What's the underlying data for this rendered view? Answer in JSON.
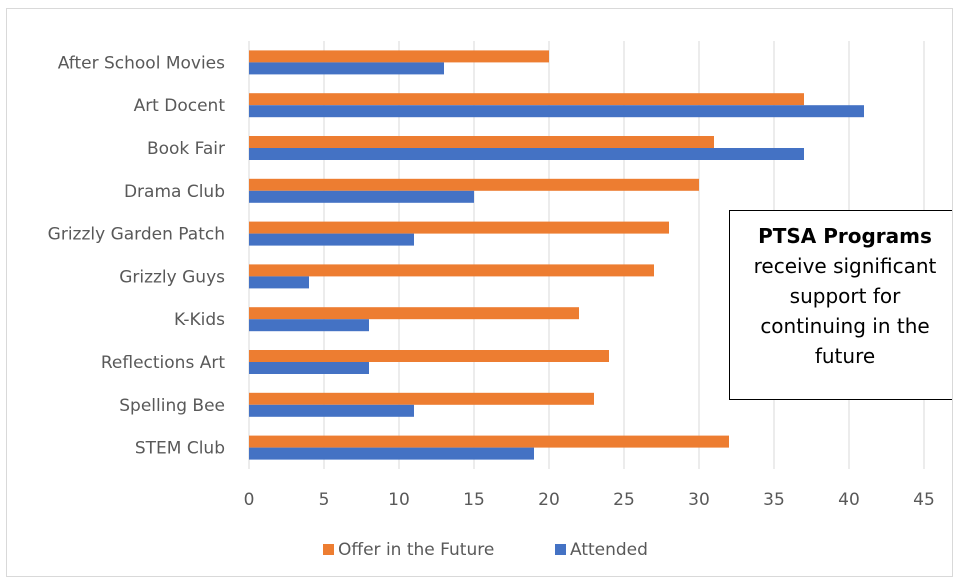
{
  "chart_data": {
    "type": "bar",
    "orientation": "horizontal",
    "categories": [
      "After School Movies",
      "Art Docent",
      "Book Fair",
      "Drama Club",
      "Grizzly Garden Patch",
      "Grizzly Guys",
      "K-Kids",
      "Reflections Art",
      "Spelling Bee",
      "STEM Club"
    ],
    "series": [
      {
        "name": "Offer in the Future",
        "color": "#ED7D31",
        "values": [
          20,
          37,
          31,
          30,
          28,
          27,
          22,
          24,
          23,
          32
        ]
      },
      {
        "name": "Attended",
        "color": "#4472C4",
        "values": [
          13,
          41,
          37,
          15,
          11,
          4,
          8,
          8,
          11,
          19
        ]
      }
    ],
    "xlim": [
      0,
      45
    ],
    "x_ticks": [
      "0",
      "5",
      "10",
      "15",
      "20",
      "25",
      "30",
      "35",
      "40",
      "45"
    ],
    "grid": true,
    "legend_position": "bottom",
    "title": "",
    "xlabel": "",
    "ylabel": ""
  },
  "annotation": {
    "bold_text": "PTSA Programs",
    "body_lines": [
      "receive significant",
      "support for",
      "continuing in the",
      "future"
    ]
  },
  "colors": {
    "gridline": "#d9d9d9",
    "axis_text": "#595959"
  }
}
